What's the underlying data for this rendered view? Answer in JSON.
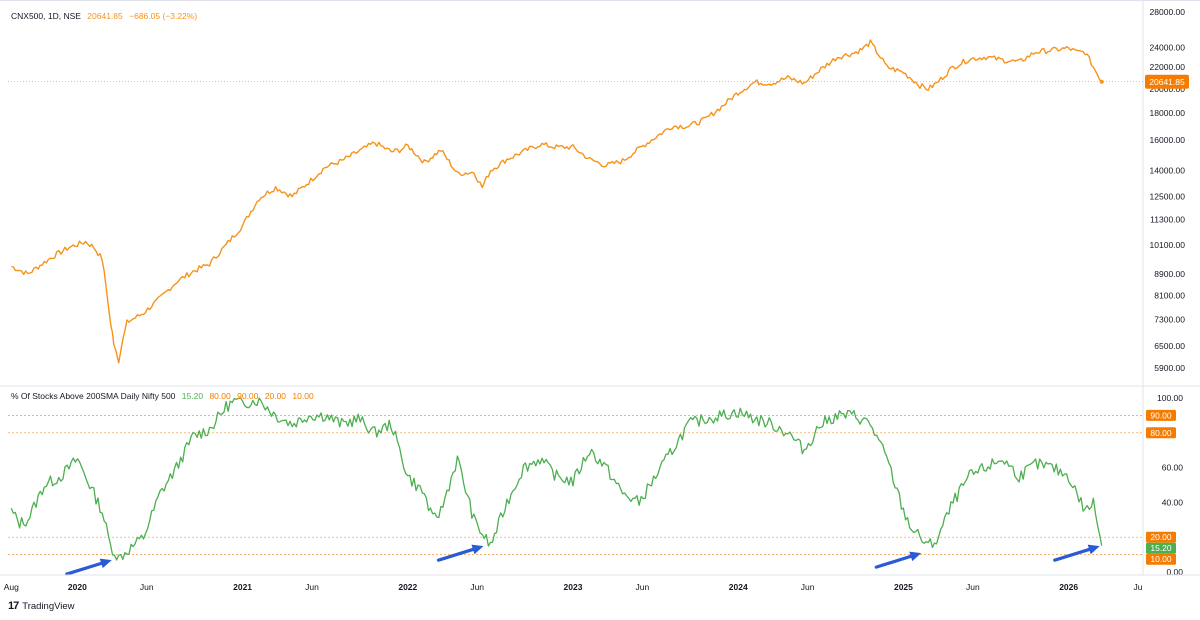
{
  "top_panel": {
    "symbol": "CNX500, 1D, NSE",
    "last": "20641.85",
    "change": "−686.05 (−3.22%)",
    "price_tag": "20641.85",
    "line_color": "#f7931a",
    "y_ticks": [
      "28000.00",
      "24000.00",
      "22000.00",
      "20000.00",
      "18000.00",
      "16000.00",
      "14000.00",
      "12500.00",
      "11300.00",
      "10100.00",
      "8900.00",
      "8100.00",
      "7300.00",
      "6500.00",
      "5900.00"
    ]
  },
  "bottom_panel": {
    "title": "% Of Stocks Above 200SMA Daily Nifty 500",
    "values": [
      "15.20",
      "80.00",
      "90.00",
      "20.00",
      "10.00"
    ],
    "line_color": "#4caf50",
    "level_color": "#f57c00",
    "y_ticks": [
      "100.00",
      "60.00",
      "40.00",
      "0.00"
    ],
    "tags": [
      {
        "label": "90.00",
        "value": 90,
        "color": "#f57c00"
      },
      {
        "label": "80.00",
        "value": 80,
        "color": "#f57c00"
      },
      {
        "label": "20.00",
        "value": 20,
        "color": "#f57c00"
      },
      {
        "label": "15.20",
        "value": 15.2,
        "color": "#4caf50"
      },
      {
        "label": "10.00",
        "value": 10,
        "color": "#f57c00"
      }
    ]
  },
  "x_axis": {
    "labels": [
      {
        "label": "Aug",
        "t": 2019.6
      },
      {
        "label": "2020",
        "t": 2020.0
      },
      {
        "label": "Jun",
        "t": 2020.42
      },
      {
        "label": "2021",
        "t": 2021.0
      },
      {
        "label": "Jun",
        "t": 2021.42
      },
      {
        "label": "2022",
        "t": 2022.0
      },
      {
        "label": "Jun",
        "t": 2022.42
      },
      {
        "label": "2023",
        "t": 2023.0
      },
      {
        "label": "Jun",
        "t": 2023.42
      },
      {
        "label": "2024",
        "t": 2024.0
      },
      {
        "label": "Jun",
        "t": 2024.42
      },
      {
        "label": "2025",
        "t": 2025.0
      },
      {
        "label": "Jun",
        "t": 2025.42
      },
      {
        "label": "2026",
        "t": 2026.0
      },
      {
        "label": "Ju",
        "t": 2026.42
      }
    ]
  },
  "arrows": {
    "color": "#2a5bd7"
  },
  "brand": "TradingView",
  "chart_data": [
    {
      "type": "line",
      "title": "CNX500, 1D, NSE",
      "yscale": "log",
      "ylim": [
        5500,
        28500
      ],
      "series": [
        {
          "name": "CNX500",
          "x": [
            2019.6,
            2019.7,
            2019.85,
            2019.95,
            2020.05,
            2020.1,
            2020.15,
            2020.2,
            2020.22,
            2020.25,
            2020.3,
            2020.4,
            2020.5,
            2020.6,
            2020.7,
            2020.8,
            2020.9,
            2021.0,
            2021.1,
            2021.2,
            2021.3,
            2021.4,
            2021.5,
            2021.6,
            2021.7,
            2021.8,
            2021.9,
            2021.95,
            2022.0,
            2022.1,
            2022.2,
            2022.3,
            2022.4,
            2022.45,
            2022.5,
            2022.6,
            2022.7,
            2022.8,
            2022.9,
            2023.0,
            2023.1,
            2023.2,
            2023.3,
            2023.4,
            2023.5,
            2023.6,
            2023.7,
            2023.8,
            2023.9,
            2024.0,
            2024.1,
            2024.2,
            2024.3,
            2024.4,
            2024.5,
            2024.6,
            2024.7,
            2024.75,
            2024.8,
            2024.9,
            2025.0,
            2025.1,
            2025.15,
            2025.2,
            2025.3,
            2025.4,
            2025.5,
            2025.6,
            2025.7,
            2025.8,
            2025.9,
            2026.0,
            2026.05,
            2026.1,
            2026.15,
            2026.2
          ],
          "y": [
            9200,
            8900,
            9600,
            10000,
            10250,
            10000,
            9500,
            7200,
            6600,
            6100,
            7200,
            7500,
            8000,
            8600,
            9000,
            9300,
            10100,
            11000,
            12400,
            13000,
            12500,
            13300,
            14200,
            14600,
            15200,
            15800,
            15200,
            15300,
            15600,
            14500,
            15300,
            13800,
            13900,
            13000,
            14000,
            14700,
            15200,
            15700,
            15500,
            15500,
            14700,
            14300,
            14600,
            15400,
            16200,
            17000,
            17000,
            17500,
            18500,
            19700,
            20600,
            20500,
            21000,
            20500,
            21800,
            23000,
            23400,
            23800,
            24500,
            22000,
            21500,
            20300,
            20000,
            20500,
            22000,
            22800,
            23000,
            22700,
            22500,
            23500,
            23700,
            23900,
            23500,
            23500,
            22000,
            20641.85
          ]
        }
      ]
    },
    {
      "type": "line",
      "title": "% Of Stocks Above 200SMA Daily Nifty 500",
      "ylim": [
        0,
        100
      ],
      "levels": [
        90,
        80,
        20,
        10
      ],
      "series": [
        {
          "name": "% Of Stocks Above 200SMA Daily Nifty 500",
          "x": [
            2019.6,
            2019.65,
            2019.7,
            2019.8,
            2019.9,
            2020.0,
            2020.05,
            2020.1,
            2020.15,
            2020.2,
            2020.25,
            2020.3,
            2020.4,
            2020.5,
            2020.6,
            2020.7,
            2020.8,
            2020.9,
            2020.95,
            2021.0,
            2021.1,
            2021.2,
            2021.3,
            2021.4,
            2021.5,
            2021.6,
            2021.7,
            2021.8,
            2021.9,
            2022.0,
            2022.1,
            2022.15,
            2022.2,
            2022.3,
            2022.4,
            2022.45,
            2022.5,
            2022.6,
            2022.7,
            2022.8,
            2022.9,
            2023.0,
            2023.1,
            2023.2,
            2023.3,
            2023.4,
            2023.5,
            2023.6,
            2023.7,
            2023.8,
            2023.9,
            2024.0,
            2024.1,
            2024.2,
            2024.3,
            2024.4,
            2024.5,
            2024.6,
            2024.7,
            2024.8,
            2024.9,
            2025.0,
            2025.05,
            2025.1,
            2025.15,
            2025.2,
            2025.3,
            2025.4,
            2025.5,
            2025.6,
            2025.7,
            2025.8,
            2025.9,
            2026.0,
            2026.05,
            2026.1,
            2026.15,
            2026.2
          ],
          "y": [
            35,
            28,
            30,
            50,
            55,
            65,
            55,
            45,
            35,
            15,
            8,
            12,
            20,
            45,
            60,
            78,
            82,
            95,
            98,
            97,
            99,
            90,
            85,
            90,
            90,
            85,
            88,
            80,
            85,
            55,
            45,
            30,
            35,
            65,
            30,
            22,
            15,
            40,
            60,
            65,
            55,
            52,
            70,
            60,
            45,
            40,
            55,
            70,
            85,
            88,
            90,
            92,
            88,
            85,
            80,
            70,
            85,
            90,
            90,
            85,
            65,
            35,
            25,
            20,
            15,
            18,
            40,
            55,
            60,
            65,
            55,
            62,
            60,
            55,
            45,
            35,
            40,
            15.2
          ]
        }
      ]
    }
  ]
}
